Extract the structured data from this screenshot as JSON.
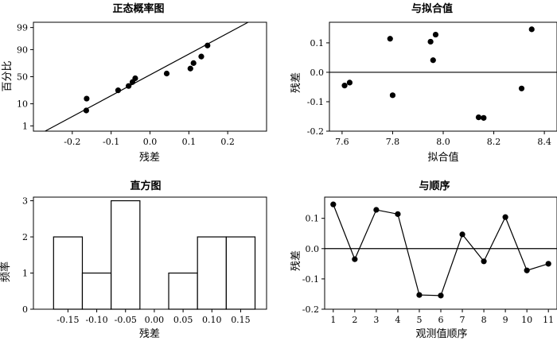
{
  "chart_data": [
    {
      "id": "normal-probability",
      "type": "scatter",
      "title": "正态概率图",
      "xlabel": "残差",
      "ylabel": "百分比",
      "xlim": [
        -0.3,
        0.3
      ],
      "y_scale": "normal-probability",
      "xticks": [
        -0.2,
        -0.1,
        0.0,
        0.1,
        0.2
      ],
      "xtick_labels": [
        "-0.2",
        "-0.1",
        "0.0",
        "0.1",
        "0.2"
      ],
      "yticks": [
        1,
        10,
        50,
        90,
        99
      ],
      "ytick_labels": [
        "1",
        "10",
        "50",
        "90",
        "99"
      ],
      "points": [
        {
          "x": -0.164,
          "y": 5.5
        },
        {
          "x": -0.163,
          "y": 15
        },
        {
          "x": -0.082,
          "y": 26
        },
        {
          "x": -0.055,
          "y": 33
        },
        {
          "x": -0.045,
          "y": 40
        },
        {
          "x": -0.038,
          "y": 47
        },
        {
          "x": 0.043,
          "y": 56
        },
        {
          "x": 0.104,
          "y": 65
        },
        {
          "x": 0.112,
          "y": 74
        },
        {
          "x": 0.132,
          "y": 83
        },
        {
          "x": 0.148,
          "y": 93
        }
      ],
      "fit_line": [
        {
          "x": -0.27,
          "y": 0.5
        },
        {
          "x": 0.27,
          "y": 99.7
        }
      ],
      "grid": false
    },
    {
      "id": "versus-fits",
      "type": "scatter",
      "title": "与拟合值",
      "xlabel": "拟合值",
      "ylabel": "残差",
      "xlim": [
        7.55,
        8.45
      ],
      "ylim": [
        -0.2,
        0.17
      ],
      "xticks": [
        7.6,
        7.8,
        8.0,
        8.2,
        8.4
      ],
      "xtick_labels": [
        "7.6",
        "7.8",
        "8.0",
        "8.2",
        "8.4"
      ],
      "yticks": [
        -0.2,
        -0.1,
        0.0,
        0.1
      ],
      "ytick_labels": [
        "-0.2",
        "-0.1",
        "0.0",
        "0.1"
      ],
      "reference_y": 0,
      "points": [
        {
          "x": 7.61,
          "y": -0.045
        },
        {
          "x": 7.63,
          "y": -0.035
        },
        {
          "x": 7.79,
          "y": 0.114
        },
        {
          "x": 7.8,
          "y": -0.078
        },
        {
          "x": 7.95,
          "y": 0.104
        },
        {
          "x": 7.96,
          "y": 0.041
        },
        {
          "x": 7.97,
          "y": 0.128
        },
        {
          "x": 8.14,
          "y": -0.153
        },
        {
          "x": 8.16,
          "y": -0.155
        },
        {
          "x": 8.31,
          "y": -0.055
        },
        {
          "x": 8.35,
          "y": 0.146
        }
      ],
      "grid": false
    },
    {
      "id": "histogram",
      "type": "bar",
      "title": "直方图",
      "xlabel": "残差",
      "ylabel": "频率",
      "ylim": [
        0,
        3.1
      ],
      "yticks": [
        0,
        1,
        2,
        3
      ],
      "ytick_labels": [
        "0",
        "1",
        "2",
        "3"
      ],
      "bin_width": 0.05,
      "categories": [
        -0.15,
        -0.1,
        -0.05,
        0.0,
        0.05,
        0.1,
        0.15
      ],
      "category_labels": [
        "-0.15",
        "-0.10",
        "-0.05",
        "0.00",
        "0.05",
        "0.10",
        "0.15"
      ],
      "values": [
        2,
        1,
        3,
        0,
        1,
        2,
        2
      ],
      "grid": false
    },
    {
      "id": "versus-order",
      "type": "line",
      "title": "与顺序",
      "xlabel": "观测值顺序",
      "ylabel": "残差",
      "xlim": [
        0.6,
        11.4
      ],
      "ylim": [
        -0.2,
        0.17
      ],
      "xticks": [
        1,
        2,
        3,
        4,
        5,
        6,
        7,
        8,
        9,
        10,
        11
      ],
      "xtick_labels": [
        "1",
        "2",
        "3",
        "4",
        "5",
        "6",
        "7",
        "8",
        "9",
        "10",
        "11"
      ],
      "yticks": [
        -0.2,
        -0.1,
        0.0,
        0.1
      ],
      "ytick_labels": [
        "-0.2",
        "-0.1",
        "0.0",
        "0.1"
      ],
      "reference_y": 0,
      "x": [
        1,
        2,
        3,
        4,
        5,
        6,
        7,
        8,
        9,
        10,
        11
      ],
      "y": [
        0.146,
        -0.035,
        0.128,
        0.114,
        -0.153,
        -0.155,
        0.047,
        -0.042,
        0.104,
        -0.072,
        -0.05
      ],
      "grid": false
    }
  ]
}
